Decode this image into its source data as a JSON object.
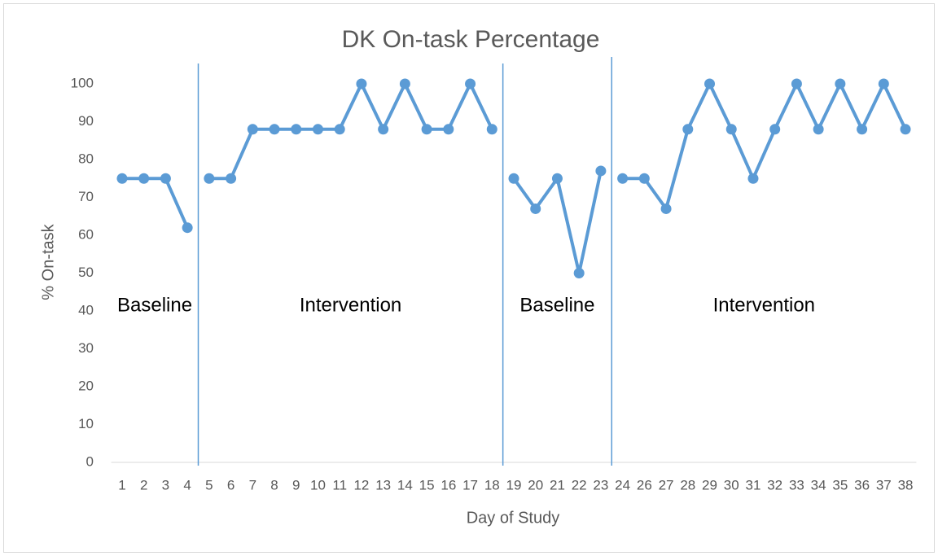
{
  "chart_data": {
    "type": "line",
    "title": "DK On-task Percentage",
    "x_label": "Day of Study",
    "y_label": "% On-task",
    "categories": [
      "1",
      "2",
      "3",
      "4",
      "5",
      "6",
      "7",
      "8",
      "9",
      "10",
      "11",
      "12",
      "13",
      "14",
      "15",
      "16",
      "17",
      "18",
      "19",
      "20",
      "21",
      "22",
      "23",
      "24",
      "26",
      "27",
      "28",
      "29",
      "30",
      "31",
      "32",
      "33",
      "34",
      "35",
      "36",
      "37",
      "38"
    ],
    "series": [
      {
        "color": "#5b9bd5",
        "values": [
          75,
          75,
          75,
          62,
          null,
          null,
          null,
          null,
          null,
          null,
          null,
          null,
          null,
          null,
          null,
          null,
          null,
          null,
          null,
          null,
          null,
          null,
          null,
          null,
          null,
          null,
          null,
          null,
          null,
          null,
          null,
          null,
          null,
          null,
          null,
          null,
          null
        ]
      },
      {
        "color": "#5b9bd5",
        "values": [
          null,
          null,
          null,
          null,
          75,
          75,
          88,
          88,
          88,
          88,
          88,
          100,
          88,
          100,
          88,
          88,
          100,
          88,
          null,
          null,
          null,
          null,
          null,
          null,
          null,
          null,
          null,
          null,
          null,
          null,
          null,
          null,
          null,
          null,
          null,
          null,
          null
        ]
      },
      {
        "color": "#5b9bd5",
        "values": [
          null,
          null,
          null,
          null,
          null,
          null,
          null,
          null,
          null,
          null,
          null,
          null,
          null,
          null,
          null,
          null,
          null,
          null,
          75,
          67,
          75,
          50,
          77,
          null,
          null,
          null,
          null,
          null,
          null,
          null,
          null,
          null,
          null,
          null,
          null,
          null,
          null
        ]
      },
      {
        "color": "#5b9bd5",
        "values": [
          null,
          null,
          null,
          null,
          null,
          null,
          null,
          null,
          null,
          null,
          null,
          null,
          null,
          null,
          null,
          null,
          null,
          null,
          null,
          null,
          null,
          null,
          null,
          75,
          75,
          67,
          88,
          100,
          88,
          75,
          88,
          100,
          88,
          100,
          88,
          100,
          88
        ]
      }
    ],
    "phases": [
      {
        "label": "Baseline",
        "start": "1",
        "end": "4"
      },
      {
        "label": "Intervention",
        "start": "5",
        "end": "18"
      },
      {
        "label": "Baseline",
        "start": "19",
        "end": "23"
      },
      {
        "label": "Intervention",
        "start": "24",
        "end": "38"
      }
    ],
    "phase_line_color": "#5b9bd5",
    "ylim": [
      0,
      100
    ],
    "yticks": [
      0,
      10,
      20,
      30,
      40,
      50,
      60,
      70,
      80,
      90,
      100
    ],
    "grid": false
  }
}
